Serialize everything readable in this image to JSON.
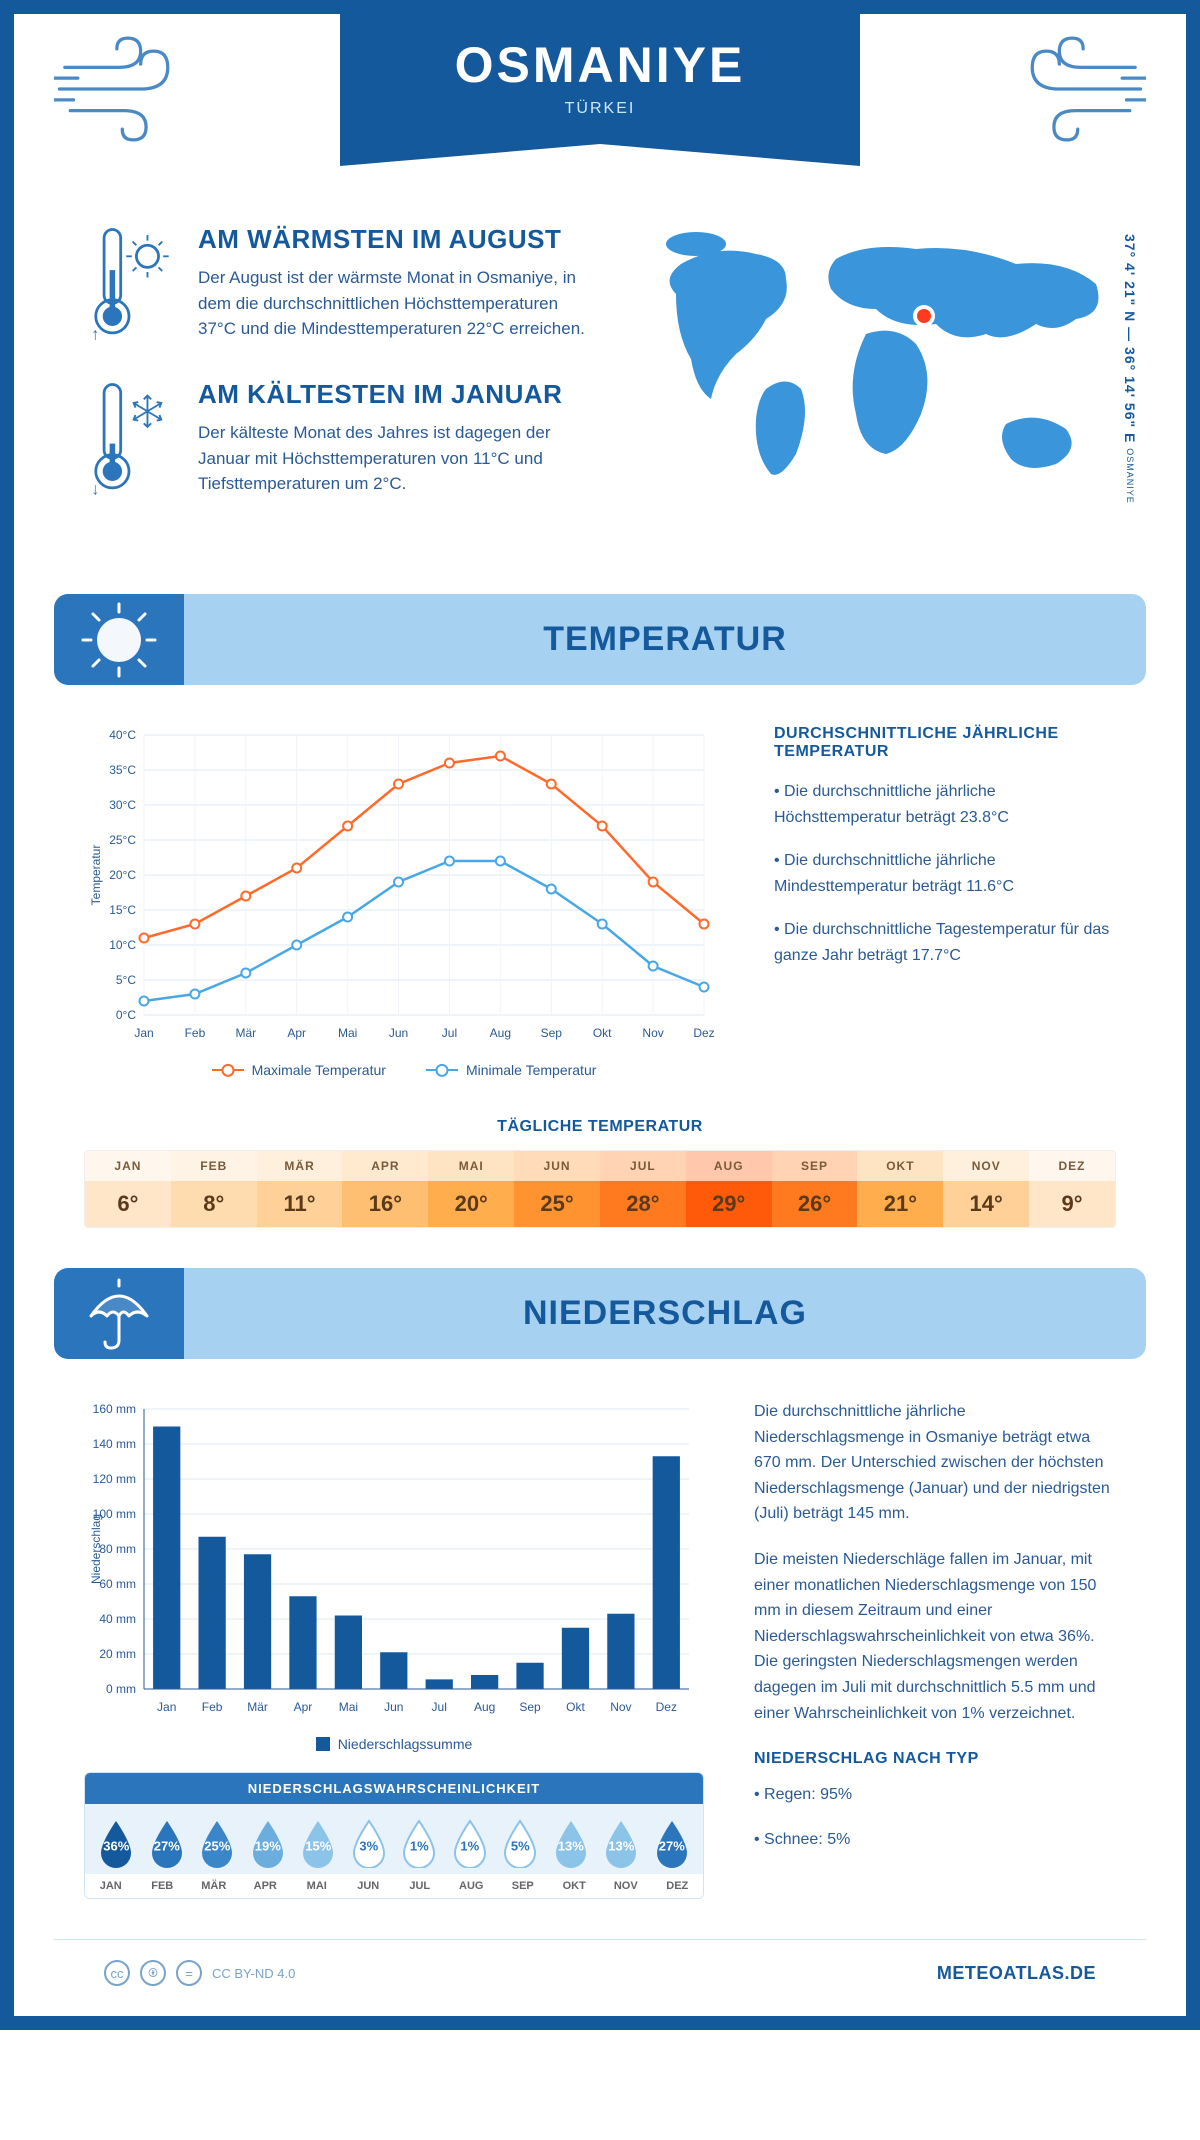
{
  "header": {
    "city": "OSMANIYE",
    "country": "TÜRKEI",
    "coords": "37° 4' 21\" N — 36° 14' 56\" E",
    "coords_sub": "OSMANIYE"
  },
  "overview": {
    "hot": {
      "title": "AM WÄRMSTEN IM AUGUST",
      "text": "Der August ist der wärmste Monat in Osmaniye, in dem die durchschnittlichen Höchsttemperaturen 37°C und die Mindesttemperaturen 22°C erreichen."
    },
    "cold": {
      "title": "AM KÄLTESTEN IM JANUAR",
      "text": "Der kälteste Monat des Jahres ist dagegen der Januar mit Höchsttemperaturen von 11°C und Tiefsttemperaturen um 2°C."
    }
  },
  "temperature": {
    "section_label": "TEMPERATUR",
    "info_title": "DURCHSCHNITTLICHE JÄHRLICHE TEMPERATUR",
    "info_p1": "• Die durchschnittliche jährliche Höchsttemperatur beträgt 23.8°C",
    "info_p2": "• Die durchschnittliche jährliche Mindesttemperatur beträgt 11.6°C",
    "info_p3": "• Die durchschnittliche Tagestemperatur für das ganze Jahr beträgt 17.7°C",
    "chart": {
      "months": [
        "Jan",
        "Feb",
        "Mär",
        "Apr",
        "Mai",
        "Jun",
        "Jul",
        "Aug",
        "Sep",
        "Okt",
        "Nov",
        "Dez"
      ],
      "max": [
        11,
        13,
        17,
        21,
        27,
        33,
        36,
        37,
        33,
        27,
        19,
        13
      ],
      "min": [
        2,
        3,
        6,
        10,
        14,
        19,
        22,
        22,
        18,
        13,
        7,
        4
      ],
      "max_color": "#ff6a2b",
      "min_color": "#4aa7e5",
      "ylim": [
        0,
        40
      ],
      "ytick": 5,
      "ylabel": "Temperatur",
      "legend_max": "Maximale Temperatur",
      "legend_min": "Minimale Temperatur"
    },
    "daily": {
      "title": "TÄGLICHE TEMPERATUR",
      "months": [
        "JAN",
        "FEB",
        "MÄR",
        "APR",
        "MAI",
        "JUN",
        "JUL",
        "AUG",
        "SEP",
        "OKT",
        "NOV",
        "DEZ"
      ],
      "values": [
        "6°",
        "8°",
        "11°",
        "16°",
        "20°",
        "25°",
        "28°",
        "29°",
        "26°",
        "21°",
        "14°",
        "9°"
      ],
      "colors": [
        "#ffe6c8",
        "#ffdcb0",
        "#ffd199",
        "#ffbf73",
        "#ffad4d",
        "#ff9330",
        "#ff7a1f",
        "#ff5a0a",
        "#ff7a1f",
        "#ffad4d",
        "#ffd199",
        "#ffe6c8"
      ]
    }
  },
  "precip": {
    "section_label": "NIEDERSCHLAG",
    "chart": {
      "months": [
        "Jan",
        "Feb",
        "Mär",
        "Apr",
        "Mai",
        "Jun",
        "Jul",
        "Aug",
        "Sep",
        "Okt",
        "Nov",
        "Dez"
      ],
      "values": [
        150,
        87,
        77,
        53,
        42,
        21,
        5.5,
        8,
        15,
        35,
        43,
        133
      ],
      "ylim": [
        0,
        160
      ],
      "ytick": 20,
      "ylabel": "Niederschlag",
      "legend": "Niederschlagssumme",
      "bar_color": "#15599d"
    },
    "text_p1": "Die durchschnittliche jährliche Niederschlagsmenge in Osmaniye beträgt etwa 670 mm. Der Unterschied zwischen der höchsten Niederschlagsmenge (Januar) und der niedrigsten (Juli) beträgt 145 mm.",
    "text_p2": "Die meisten Niederschläge fallen im Januar, mit einer monatlichen Niederschlagsmenge von 150 mm in diesem Zeitraum und einer Niederschlagswahrscheinlichkeit von etwa 36%. Die geringsten Niederschlagsmengen werden dagegen im Juli mit durchschnittlich 5.5 mm und einer Wahrscheinlichkeit von 1% verzeichnet.",
    "type_title": "NIEDERSCHLAG NACH TYP",
    "type_1": "• Regen: 95%",
    "type_2": "• Schnee: 5%",
    "prob": {
      "title": "NIEDERSCHLAGSWAHRSCHEINLICHKEIT",
      "months": [
        "JAN",
        "FEB",
        "MÄR",
        "APR",
        "MAI",
        "JUN",
        "JUL",
        "AUG",
        "SEP",
        "OKT",
        "NOV",
        "DEZ"
      ],
      "values": [
        "36%",
        "27%",
        "25%",
        "19%",
        "15%",
        "3%",
        "1%",
        "1%",
        "5%",
        "13%",
        "13%",
        "27%"
      ],
      "fills": [
        "#15599d",
        "#2a75bb",
        "#3a86c9",
        "#6baede",
        "#8cc3e9",
        "#fff",
        "#fff",
        "#fff",
        "#fff",
        "#8cc3e9",
        "#8cc3e9",
        "#2a75bb"
      ],
      "txtcol": [
        "#fff",
        "#fff",
        "#fff",
        "#fff",
        "#fff",
        "#2a75bb",
        "#2a75bb",
        "#2a75bb",
        "#2a75bb",
        "#fff",
        "#fff",
        "#fff"
      ]
    }
  },
  "footer": {
    "license": "CC BY-ND 4.0",
    "brand": "METEOATLAS.DE"
  }
}
